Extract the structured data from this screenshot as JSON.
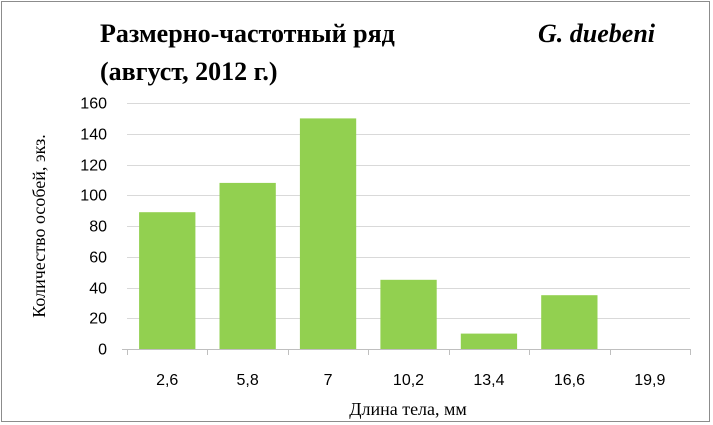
{
  "chart_data": {
    "type": "bar",
    "title_line1": {
      "prefix": "Размерно-частотный ряд",
      "species": "G. duebeni"
    },
    "title_line2": "(август, 2012 г.)",
    "categories": [
      "2,6",
      "5,8",
      "7",
      "10,2",
      "13,4",
      "16,6",
      "19,9"
    ],
    "values": [
      89,
      108,
      150,
      45,
      10,
      35,
      0
    ],
    "xlabel": "Длина тела, мм",
    "ylabel": "Количество особей, экз.",
    "ylim": [
      0,
      160
    ],
    "yticks": [
      0,
      20,
      40,
      60,
      80,
      100,
      120,
      140,
      160
    ],
    "grid": true,
    "legend": "none",
    "bar_color": "#92d050"
  }
}
